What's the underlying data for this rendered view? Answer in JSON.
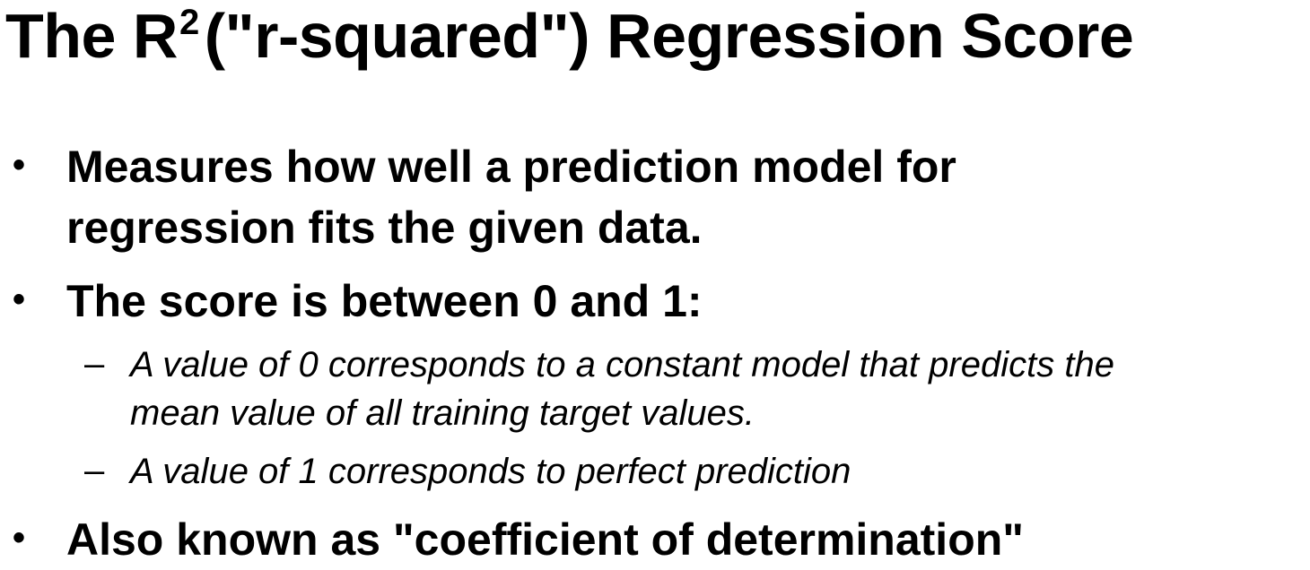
{
  "slide": {
    "title": {
      "prefix": "The R",
      "superscript": "2",
      "suffix": "(\"r-squared\") Regression Score"
    },
    "bullets": [
      {
        "marker": "•",
        "lines": [
          "Measures how well a prediction model for",
          "regression fits the given data."
        ]
      },
      {
        "marker": "•",
        "lines": [
          "The score is between 0 and 1:"
        ]
      },
      {
        "marker": "•",
        "lines": [
          "Also known as \"coefficient of determination\""
        ]
      }
    ],
    "sub_bullets": [
      {
        "marker": "–",
        "lines": [
          "A value of 0 corresponds to a constant model that predicts the",
          "mean value of all training target values."
        ]
      },
      {
        "marker": "–",
        "lines": [
          "A value of 1 corresponds to perfect prediction"
        ]
      }
    ]
  }
}
